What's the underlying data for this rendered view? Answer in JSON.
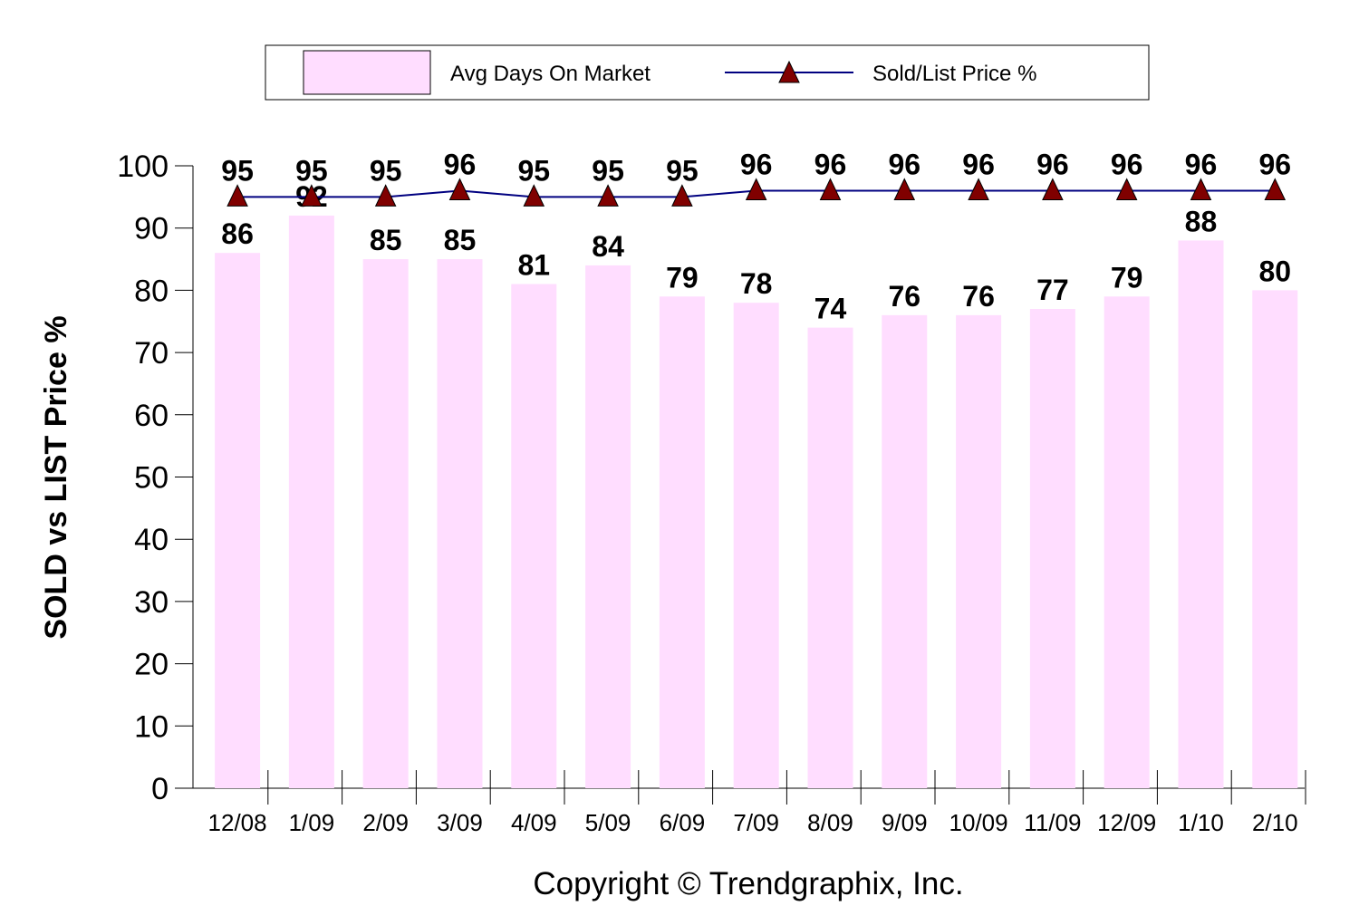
{
  "chart_data": {
    "type": "bar",
    "categories": [
      "12/08",
      "1/09",
      "2/09",
      "3/09",
      "4/09",
      "5/09",
      "6/09",
      "7/09",
      "8/09",
      "9/09",
      "10/09",
      "11/09",
      "12/09",
      "1/10",
      "2/10"
    ],
    "series": [
      {
        "name": "Avg Days On Market",
        "type": "bar",
        "color": "#ffddff",
        "values": [
          86,
          92,
          85,
          85,
          81,
          84,
          79,
          78,
          74,
          76,
          76,
          77,
          79,
          88,
          80
        ]
      },
      {
        "name": "Sold/List Price %",
        "type": "line",
        "color": "#000080",
        "marker": "triangle",
        "marker_color": "#800000",
        "values": [
          95,
          95,
          95,
          96,
          95,
          95,
          95,
          96,
          96,
          96,
          96,
          96,
          96,
          96,
          96
        ]
      }
    ],
    "ylabel": "SOLD vs LIST Price %",
    "xlabel": "",
    "ylim": [
      0,
      100
    ],
    "yticks": [
      0,
      10,
      20,
      30,
      40,
      50,
      60,
      70,
      80,
      90,
      100
    ],
    "legend_position": "top",
    "grid": false,
    "footer": "Copyright © Trendgraphix, Inc."
  }
}
